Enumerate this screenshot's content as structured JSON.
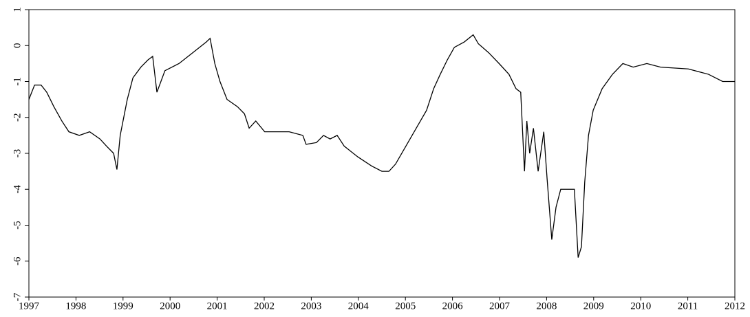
{
  "chart_data": {
    "type": "line",
    "x": [
      1997.0,
      1997.12,
      1997.26,
      1997.38,
      1997.53,
      1997.7,
      1997.85,
      1998.07,
      1998.29,
      1998.51,
      1998.65,
      1998.8,
      1998.87,
      1998.94,
      1999.09,
      1999.21,
      1999.38,
      1999.53,
      1999.63,
      1999.72,
      1999.89,
      2000.19,
      2000.48,
      2000.77,
      2000.85,
      2000.95,
      2001.06,
      2001.21,
      2001.43,
      2001.58,
      2001.68,
      2001.82,
      2002.01,
      2002.53,
      2002.82,
      2002.89,
      2003.11,
      2003.26,
      2003.4,
      2003.55,
      2003.7,
      2003.99,
      2004.28,
      2004.5,
      2004.65,
      2004.79,
      2005.01,
      2005.23,
      2005.45,
      2005.6,
      2005.74,
      2005.89,
      2006.04,
      2006.25,
      2006.44,
      2006.55,
      2006.77,
      2006.99,
      2007.2,
      2007.35,
      2007.45,
      2007.53,
      2007.58,
      2007.64,
      2007.72,
      2007.82,
      2007.94,
      2008.01,
      2008.11,
      2008.2,
      2008.3,
      2008.45,
      2008.59,
      2008.67,
      2008.74,
      2008.81,
      2008.89,
      2008.99,
      2009.18,
      2009.4,
      2009.62,
      2009.84,
      2010.13,
      2010.42,
      2011.01,
      2011.44,
      2011.74,
      2012.0
    ],
    "series": [
      {
        "color": "#000000",
        "values": [
          -1.5,
          -1.1,
          -1.1,
          -1.3,
          -1.7,
          -2.1,
          -2.4,
          -2.5,
          -2.4,
          -2.6,
          -2.8,
          -3.0,
          -3.45,
          -2.5,
          -1.5,
          -0.9,
          -0.6,
          -0.4,
          -0.3,
          -1.3,
          -0.7,
          -0.5,
          -0.2,
          0.1,
          0.2,
          -0.5,
          -1.0,
          -1.5,
          -1.7,
          -1.9,
          -2.3,
          -2.1,
          -2.4,
          -2.4,
          -2.5,
          -2.75,
          -2.7,
          -2.5,
          -2.6,
          -2.5,
          -2.8,
          -3.1,
          -3.35,
          -3.5,
          -3.5,
          -3.3,
          -2.8,
          -2.3,
          -1.8,
          -1.2,
          -0.8,
          -0.4,
          -0.05,
          0.1,
          0.3,
          0.05,
          -0.2,
          -0.5,
          -0.8,
          -1.2,
          -1.3,
          -3.5,
          -2.1,
          -3.0,
          -2.3,
          -3.5,
          -2.4,
          -3.7,
          -5.4,
          -4.5,
          -4.0,
          -4.0,
          -4.0,
          -5.9,
          -5.6,
          -3.8,
          -2.5,
          -1.8,
          -1.2,
          -0.8,
          -0.5,
          -0.6,
          -0.5,
          -0.6,
          -0.65,
          -0.8,
          -1.0,
          -1.0
        ]
      }
    ],
    "xlim": [
      1997,
      2012
    ],
    "xticks": [
      1997,
      1998,
      1999,
      2000,
      2001,
      2002,
      2003,
      2004,
      2005,
      2006,
      2007,
      2008,
      2009,
      2010,
      2011,
      2012
    ],
    "ylim": [
      -7,
      1
    ],
    "yticks": [
      -7,
      -6,
      -5,
      -4,
      -3,
      -2,
      -1,
      0,
      1
    ]
  }
}
